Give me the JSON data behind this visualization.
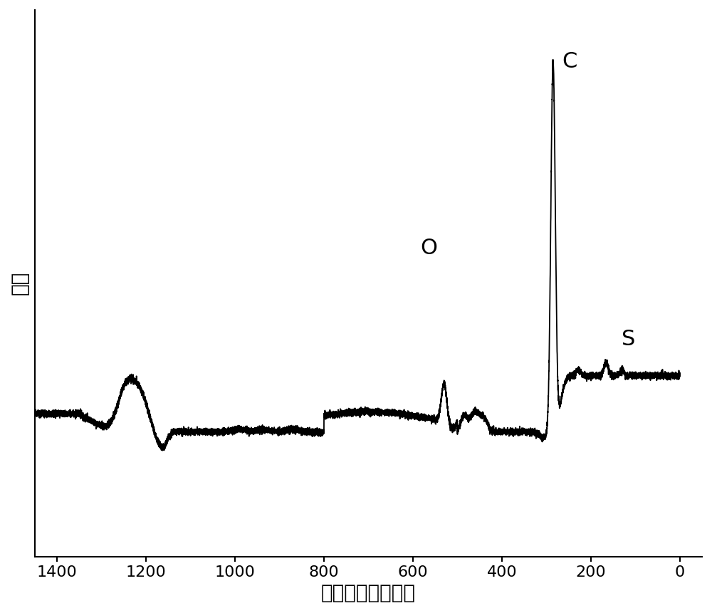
{
  "xlabel": "结合能（电子伏）",
  "ylabel": "强度",
  "xlim_left": 1450,
  "xlim_right": -50,
  "background_color": "#ffffff",
  "line_color": "#000000",
  "label_C": "C",
  "label_O": "O",
  "label_S": "S",
  "xlabel_fontsize": 20,
  "ylabel_fontsize": 20,
  "annotation_fontsize": 22,
  "tick_fontsize": 16,
  "linewidth": 1.3
}
